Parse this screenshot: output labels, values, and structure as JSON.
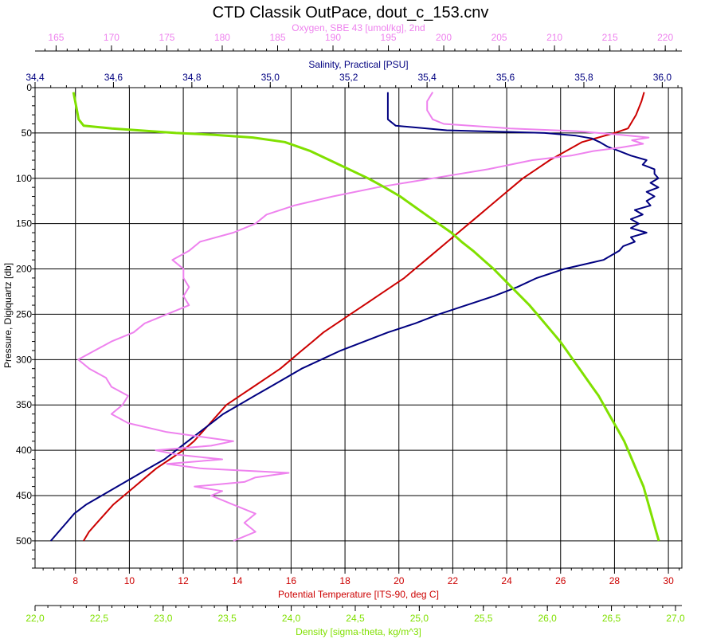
{
  "chart_data": {
    "type": "line",
    "title": "CTD Classik OutPace, dout_c_153.cnv",
    "grid": true,
    "y_axis": {
      "label": "Pressure, Digiquartz [db]",
      "range": [
        530,
        0
      ],
      "ticks": [
        0,
        50,
        100,
        150,
        200,
        250,
        300,
        350,
        400,
        450,
        500
      ],
      "tick_labels": [
        "0",
        "50",
        "100",
        "150",
        "200",
        "250",
        "300",
        "350",
        "400",
        "450",
        "500"
      ]
    },
    "x_axes": [
      {
        "id": "oxygen",
        "label": "Oxygen, SBE 43 [umol/kg], 2nd",
        "color": "#ee82ee",
        "position": "top-outer",
        "range": [
          163.1,
          221.5
        ],
        "ticks": [
          165,
          170,
          175,
          180,
          185,
          190,
          195,
          200,
          205,
          210,
          215,
          220
        ],
        "tick_labels": [
          "165",
          "170",
          "175",
          "180",
          "185",
          "190",
          "195",
          "200",
          "205",
          "210",
          "215",
          "220"
        ]
      },
      {
        "id": "salinity",
        "label": "Salinity, Practical [PSU]",
        "color": "#000080",
        "position": "top-inner",
        "range": [
          34.4,
          36.05
        ],
        "ticks": [
          34.4,
          34.6,
          34.8,
          35.0,
          35.2,
          35.4,
          35.6,
          35.8,
          36.0
        ],
        "tick_labels": [
          "34,4",
          "34,6",
          "34,8",
          "35,0",
          "35,2",
          "35,4",
          "35,6",
          "35,8",
          "36,0"
        ]
      },
      {
        "id": "temperature",
        "label": "Potential Temperature [ITS-90, deg C]",
        "color": "#cc0000",
        "position": "bottom-inner",
        "range": [
          6.5,
          30.5
        ],
        "ticks": [
          8,
          10,
          12,
          14,
          16,
          18,
          20,
          22,
          24,
          26,
          28,
          30
        ],
        "tick_labels": [
          "8",
          "10",
          "12",
          "14",
          "16",
          "18",
          "20",
          "22",
          "24",
          "26",
          "28",
          "30"
        ]
      },
      {
        "id": "density",
        "label": "Density [sigma-theta, kg/m^3]",
        "color": "#80e000",
        "position": "bottom-outer",
        "range": [
          22.0,
          27.05
        ],
        "ticks": [
          22.0,
          22.5,
          23.0,
          23.5,
          24.0,
          24.5,
          25.0,
          25.5,
          26.0,
          26.5,
          27.0
        ],
        "tick_labels": [
          "22,0",
          "22,5",
          "23,0",
          "23,5",
          "24,0",
          "24,5",
          "25,0",
          "25,5",
          "26,0",
          "26,5",
          "27,0"
        ]
      }
    ],
    "series": [
      {
        "axis": "temperature",
        "color": "#cc0000",
        "pressure": [
          5,
          15,
          30,
          45,
          50,
          55,
          60,
          70,
          80,
          90,
          100,
          110,
          120,
          130,
          140,
          150,
          160,
          170,
          180,
          190,
          200,
          210,
          220,
          230,
          240,
          250,
          260,
          270,
          280,
          290,
          300,
          310,
          320,
          330,
          340,
          350,
          360,
          370,
          380,
          390,
          400,
          410,
          420,
          430,
          440,
          450,
          460,
          470,
          480,
          490,
          500
        ],
        "values": [
          29.1,
          29.0,
          28.8,
          28.5,
          28.0,
          27.4,
          26.8,
          26.2,
          25.6,
          25.1,
          24.6,
          24.2,
          23.8,
          23.4,
          23.0,
          22.6,
          22.2,
          21.8,
          21.4,
          21.0,
          20.6,
          20.2,
          19.7,
          19.2,
          18.7,
          18.2,
          17.7,
          17.2,
          16.8,
          16.4,
          16.0,
          15.6,
          15.1,
          14.6,
          14.1,
          13.6,
          13.3,
          13.0,
          12.7,
          12.4,
          12.0,
          11.5,
          11.0,
          10.6,
          10.2,
          9.8,
          9.4,
          9.1,
          8.8,
          8.5,
          8.3
        ]
      },
      {
        "axis": "salinity",
        "color": "#000080",
        "pressure": [
          5,
          20,
          35,
          42,
          47,
          50,
          53,
          56,
          60,
          65,
          70,
          75,
          80,
          85,
          90,
          95,
          100,
          105,
          110,
          115,
          120,
          125,
          130,
          135,
          140,
          145,
          150,
          155,
          160,
          165,
          170,
          175,
          180,
          185,
          190,
          195,
          200,
          210,
          220,
          230,
          240,
          250,
          260,
          270,
          280,
          290,
          300,
          310,
          320,
          330,
          340,
          350,
          360,
          370,
          380,
          390,
          400,
          410,
          420,
          430,
          440,
          450,
          460,
          470,
          480,
          490,
          500
        ],
        "values": [
          35.3,
          35.3,
          35.3,
          35.32,
          35.45,
          35.7,
          35.78,
          35.82,
          35.84,
          35.86,
          35.89,
          35.92,
          35.96,
          35.95,
          35.98,
          35.98,
          35.99,
          35.97,
          35.99,
          35.96,
          35.98,
          35.96,
          35.97,
          35.93,
          35.95,
          35.92,
          35.94,
          35.92,
          35.96,
          35.92,
          35.93,
          35.9,
          35.89,
          35.87,
          35.85,
          35.8,
          35.75,
          35.68,
          35.63,
          35.57,
          35.5,
          35.43,
          35.37,
          35.3,
          35.24,
          35.18,
          35.13,
          35.08,
          35.04,
          35.0,
          34.96,
          34.92,
          34.88,
          34.85,
          34.82,
          34.79,
          34.76,
          34.73,
          34.69,
          34.65,
          34.61,
          34.57,
          34.53,
          34.5,
          34.48,
          34.46,
          34.44
        ]
      },
      {
        "axis": "oxygen",
        "color": "#ee82ee",
        "pressure": [
          5,
          15,
          25,
          35,
          40,
          45,
          48,
          52,
          55,
          58,
          62,
          66,
          70,
          75,
          80,
          90,
          100,
          110,
          120,
          130,
          140,
          150,
          160,
          170,
          180,
          190,
          200,
          210,
          220,
          230,
          240,
          250,
          260,
          270,
          280,
          290,
          300,
          310,
          320,
          330,
          340,
          350,
          360,
          370,
          380,
          385,
          390,
          395,
          400,
          405,
          410,
          415,
          420,
          425,
          430,
          435,
          440,
          445,
          450,
          460,
          470,
          480,
          490,
          500
        ],
        "values": [
          199.0,
          198.5,
          198.5,
          199.0,
          200.0,
          206.0,
          212.0,
          216.0,
          218.5,
          217.0,
          218.0,
          216.0,
          213.5,
          211.5,
          208.0,
          204.0,
          199.0,
          194.0,
          190.0,
          186.5,
          184.0,
          183.0,
          181.0,
          178.0,
          177.0,
          175.5,
          176.5,
          176.5,
          177.0,
          176.5,
          177.0,
          175.0,
          173.0,
          172.0,
          170.0,
          168.5,
          167.0,
          168.0,
          169.5,
          170.0,
          171.5,
          171.0,
          170.0,
          171.5,
          175.0,
          178.0,
          181.0,
          179.0,
          174.0,
          176.0,
          180.0,
          175.0,
          178.0,
          186.0,
          183.0,
          182.0,
          177.5,
          180.0,
          179.0,
          181.0,
          183.0,
          182.0,
          183.0,
          181.0
        ]
      },
      {
        "axis": "density",
        "color": "#80e000",
        "pressure": [
          5,
          20,
          35,
          42,
          45,
          48,
          50,
          52,
          55,
          60,
          70,
          80,
          90,
          100,
          110,
          120,
          130,
          140,
          150,
          160,
          170,
          180,
          190,
          200,
          210,
          220,
          230,
          240,
          250,
          260,
          270,
          280,
          290,
          300,
          310,
          320,
          330,
          340,
          350,
          360,
          370,
          380,
          390,
          400,
          410,
          420,
          430,
          440,
          450,
          460,
          470,
          480,
          490,
          500
        ],
        "values": [
          22.3,
          22.32,
          22.34,
          22.38,
          22.6,
          22.9,
          23.1,
          23.4,
          23.7,
          23.95,
          24.15,
          24.3,
          24.45,
          24.6,
          24.73,
          24.85,
          24.95,
          25.05,
          25.15,
          25.25,
          25.33,
          25.42,
          25.5,
          25.58,
          25.65,
          25.72,
          25.79,
          25.86,
          25.92,
          25.98,
          26.04,
          26.1,
          26.15,
          26.2,
          26.25,
          26.3,
          26.35,
          26.4,
          26.44,
          26.48,
          26.52,
          26.56,
          26.6,
          26.63,
          26.66,
          26.69,
          26.72,
          26.75,
          26.77,
          26.79,
          26.81,
          26.83,
          26.85,
          26.87
        ]
      }
    ]
  }
}
